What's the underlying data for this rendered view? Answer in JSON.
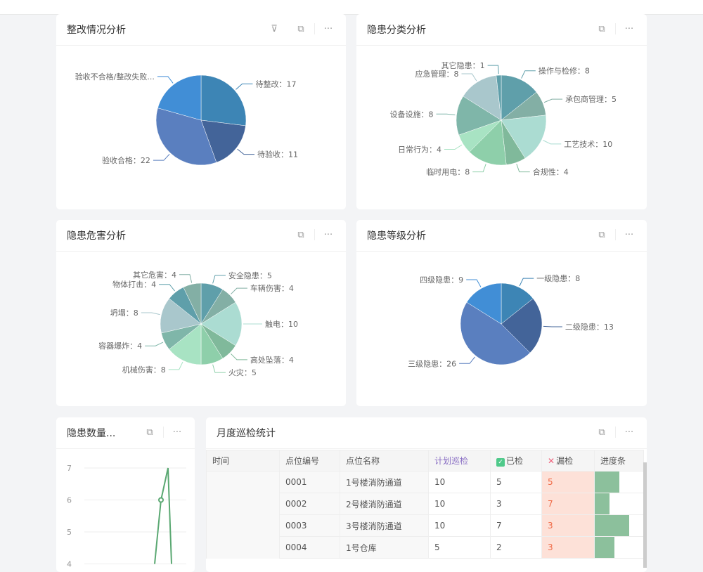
{
  "cards": {
    "rectify": {
      "title": "整改情况分析"
    },
    "category": {
      "title": "隐患分类分析"
    },
    "harm": {
      "title": "隐患危害分析"
    },
    "level": {
      "title": "隐患等级分析"
    },
    "count": {
      "title": "隐患数量..."
    },
    "monthly": {
      "title": "月度巡检统计"
    }
  },
  "icons": {
    "filter": "filter-icon",
    "expand": "expand-icon",
    "more": "more-icon"
  },
  "chart_data": [
    {
      "type": "pie",
      "name": "rectify",
      "slices": [
        {
          "label": "待整改：17",
          "value": 17,
          "color": "#3d85b5"
        },
        {
          "label": "待验收：11",
          "value": 11,
          "color": "#436499"
        },
        {
          "label": "验收合格：22",
          "value": 22,
          "color": "#5a7fbf"
        },
        {
          "label": "验收不合格/整改失败...",
          "value": 13,
          "color": "#418ed6"
        }
      ]
    },
    {
      "type": "pie",
      "name": "category",
      "slices": [
        {
          "label": "操作与检修：8",
          "value": 8,
          "color": "#5f9faa"
        },
        {
          "label": "承包商管理：5",
          "value": 5,
          "color": "#83afa5"
        },
        {
          "label": "工艺技术：10",
          "value": 10,
          "color": "#abdcd2"
        },
        {
          "label": "合规性：4",
          "value": 4,
          "color": "#80b99b"
        },
        {
          "label": "临时用电：8",
          "value": 8,
          "color": "#8ecfaa"
        },
        {
          "label": "日常行为：4",
          "value": 4,
          "color": "#a8e3c3"
        },
        {
          "label": "设备设施：8",
          "value": 8,
          "color": "#7fb6a9"
        },
        {
          "label": "应急管理：8",
          "value": 8,
          "color": "#a9c7cc"
        },
        {
          "label": "其它隐患：1",
          "value": 1,
          "color": "#5f9faa"
        }
      ]
    },
    {
      "type": "pie",
      "name": "harm",
      "slices": [
        {
          "label": "安全隐患：5",
          "value": 5,
          "color": "#5f9faa"
        },
        {
          "label": "车辆伤害：4",
          "value": 4,
          "color": "#83afa5"
        },
        {
          "label": "触电：10",
          "value": 10,
          "color": "#abdcd2"
        },
        {
          "label": "高处坠落：4",
          "value": 4,
          "color": "#80b99b"
        },
        {
          "label": "火灾：5",
          "value": 5,
          "color": "#8ecfaa"
        },
        {
          "label": "机械伤害：8",
          "value": 8,
          "color": "#a8e3c3"
        },
        {
          "label": "容器爆炸：4",
          "value": 4,
          "color": "#7fb6a9"
        },
        {
          "label": "坍塌：8",
          "value": 8,
          "color": "#a9c7cc"
        },
        {
          "label": "物体打击：4",
          "value": 4,
          "color": "#5f9faa"
        },
        {
          "label": "其它危害：4",
          "value": 4,
          "color": "#83afa5"
        }
      ]
    },
    {
      "type": "pie",
      "name": "level",
      "slices": [
        {
          "label": "一级隐患：8",
          "value": 8,
          "color": "#3d85b5"
        },
        {
          "label": "二级隐患：13",
          "value": 13,
          "color": "#436499"
        },
        {
          "label": "三级隐患：26",
          "value": 26,
          "color": "#5a7fbf"
        },
        {
          "label": "四级隐患：9",
          "value": 9,
          "color": "#418ed6"
        }
      ]
    },
    {
      "type": "line",
      "name": "count",
      "y_ticks": [
        "7",
        "6",
        "5",
        "4"
      ],
      "ylim": [
        4,
        7
      ],
      "values": [
        4,
        6,
        7,
        4
      ],
      "color": "#5aa872"
    }
  ],
  "table": {
    "headers": [
      "时间",
      "点位编号",
      "点位名称",
      "计划巡检",
      "已检",
      "漏检",
      "进度条"
    ],
    "rows": [
      {
        "time": "",
        "code": "0001",
        "name": "1号楼消防通道",
        "plan": "10",
        "done": "5",
        "miss": "5",
        "progress": 0.5
      },
      {
        "time": "",
        "code": "0002",
        "name": "2号楼消防通道",
        "plan": "10",
        "done": "3",
        "miss": "7",
        "progress": 0.3
      },
      {
        "time": "",
        "code": "0003",
        "name": "3号楼消防通道",
        "plan": "10",
        "done": "7",
        "miss": "3",
        "progress": 0.7
      },
      {
        "time": "",
        "code": "0004",
        "name": "1号仓库",
        "plan": "5",
        "done": "2",
        "miss": "3",
        "progress": 0.4
      }
    ]
  }
}
